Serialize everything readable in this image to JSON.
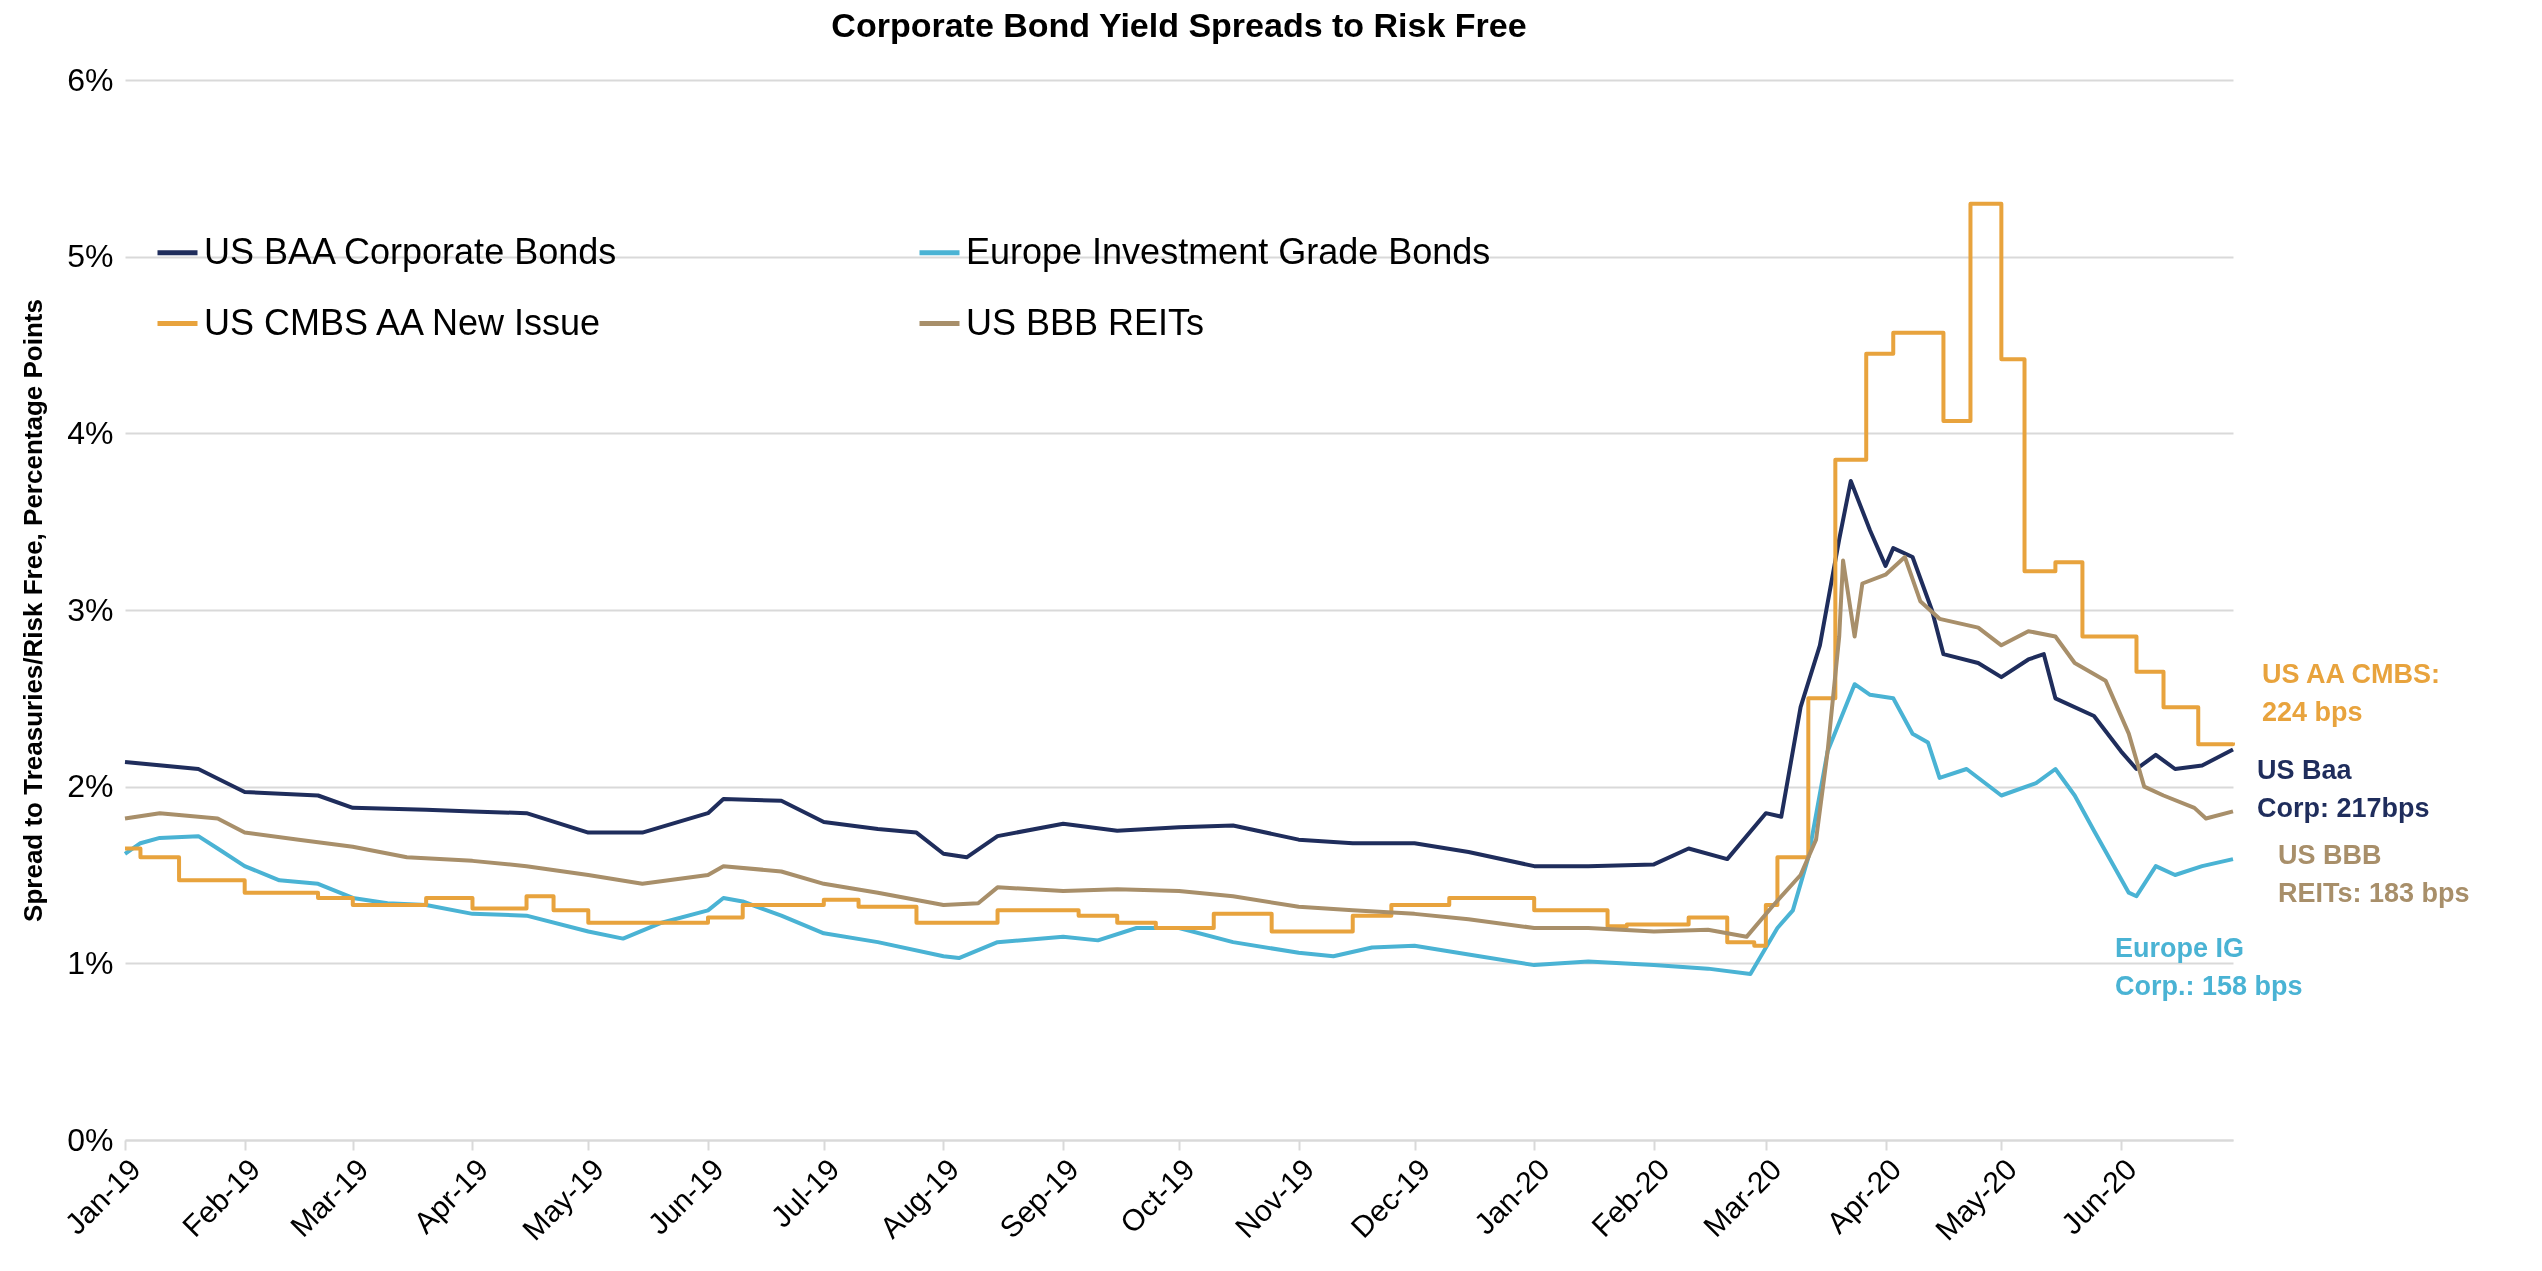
{
  "chart_data": {
    "type": "line",
    "title": "Corporate Bond Yield Spreads to Risk Free",
    "ylabel": "Spread to Treasuries/Risk Free, Percentage Points",
    "xlim": [
      "2019-01-01",
      "2020-06-30"
    ],
    "xticks": [
      {
        "value": "2019-01-01",
        "label": "Jan-19"
      },
      {
        "value": "2019-02-01",
        "label": "Feb-19"
      },
      {
        "value": "2019-03-01",
        "label": "Mar-19"
      },
      {
        "value": "2019-04-01",
        "label": "Apr-19"
      },
      {
        "value": "2019-05-01",
        "label": "May-19"
      },
      {
        "value": "2019-06-01",
        "label": "Jun-19"
      },
      {
        "value": "2019-07-01",
        "label": "Jul-19"
      },
      {
        "value": "2019-08-01",
        "label": "Aug-19"
      },
      {
        "value": "2019-09-01",
        "label": "Sep-19"
      },
      {
        "value": "2019-10-01",
        "label": "Oct-19"
      },
      {
        "value": "2019-11-01",
        "label": "Nov-19"
      },
      {
        "value": "2019-12-01",
        "label": "Dec-19"
      },
      {
        "value": "2020-01-01",
        "label": "Jan-20"
      },
      {
        "value": "2020-02-01",
        "label": "Feb-20"
      },
      {
        "value": "2020-03-01",
        "label": "Mar-20"
      },
      {
        "value": "2020-04-01",
        "label": "Apr-20"
      },
      {
        "value": "2020-05-01",
        "label": "May-20"
      },
      {
        "value": "2020-06-01",
        "label": "Jun-20"
      }
    ],
    "ylim": [
      0,
      6
    ],
    "yticks": [
      {
        "value": 0,
        "label": "0%"
      },
      {
        "value": 1,
        "label": "1%"
      },
      {
        "value": 2,
        "label": "2%"
      },
      {
        "value": 3,
        "label": "3%"
      },
      {
        "value": 4,
        "label": "4%"
      },
      {
        "value": 5,
        "label": "5%"
      },
      {
        "value": 6,
        "label": "6%"
      }
    ],
    "grid": "y",
    "legend": "top left",
    "series": [
      {
        "name": "US BAA Corporate Bonds",
        "color": "#1f2d5c",
        "x": [
          "2019-01-01",
          "2019-01-20",
          "2019-02-01",
          "2019-02-20",
          "2019-03-01",
          "2019-03-20",
          "2019-04-01",
          "2019-04-15",
          "2019-05-01",
          "2019-05-15",
          "2019-06-01",
          "2019-06-05",
          "2019-06-20",
          "2019-07-01",
          "2019-07-15",
          "2019-07-25",
          "2019-08-01",
          "2019-08-07",
          "2019-08-15",
          "2019-09-01",
          "2019-09-15",
          "2019-10-01",
          "2019-10-15",
          "2019-11-01",
          "2019-11-15",
          "2019-12-01",
          "2019-12-15",
          "2020-01-01",
          "2020-01-15",
          "2020-02-01",
          "2020-02-10",
          "2020-02-20",
          "2020-03-01",
          "2020-03-05",
          "2020-03-10",
          "2020-03-15",
          "2020-03-20",
          "2020-03-23",
          "2020-03-28",
          "2020-04-01",
          "2020-04-03",
          "2020-04-08",
          "2020-04-13",
          "2020-04-16",
          "2020-04-25",
          "2020-05-01",
          "2020-05-08",
          "2020-05-12",
          "2020-05-15",
          "2020-05-25",
          "2020-06-01",
          "2020-06-05",
          "2020-06-10",
          "2020-06-15",
          "2020-06-22",
          "2020-06-30"
        ],
        "values": [
          2.14,
          2.1,
          1.97,
          1.95,
          1.88,
          1.87,
          1.86,
          1.85,
          1.74,
          1.74,
          1.85,
          1.93,
          1.92,
          1.8,
          1.76,
          1.74,
          1.62,
          1.6,
          1.72,
          1.79,
          1.75,
          1.77,
          1.78,
          1.7,
          1.68,
          1.68,
          1.63,
          1.55,
          1.55,
          1.56,
          1.65,
          1.59,
          1.85,
          1.83,
          2.45,
          2.8,
          3.4,
          3.73,
          3.45,
          3.25,
          3.35,
          3.3,
          3.0,
          2.75,
          2.7,
          2.62,
          2.72,
          2.75,
          2.5,
          2.4,
          2.2,
          2.1,
          2.18,
          2.1,
          2.12,
          2.21
        ]
      },
      {
        "name": "Europe Investment Grade Bonds",
        "color": "#4ab3d4",
        "x": [
          "2019-01-01",
          "2019-01-05",
          "2019-01-10",
          "2019-01-20",
          "2019-01-25",
          "2019-02-01",
          "2019-02-10",
          "2019-02-20",
          "2019-03-01",
          "2019-03-10",
          "2019-03-20",
          "2019-04-01",
          "2019-04-15",
          "2019-05-01",
          "2019-05-10",
          "2019-05-20",
          "2019-06-01",
          "2019-06-05",
          "2019-06-10",
          "2019-06-20",
          "2019-07-01",
          "2019-07-15",
          "2019-08-01",
          "2019-08-05",
          "2019-08-15",
          "2019-09-01",
          "2019-09-10",
          "2019-09-20",
          "2019-10-01",
          "2019-10-15",
          "2019-11-01",
          "2019-11-10",
          "2019-11-20",
          "2019-12-01",
          "2019-12-15",
          "2020-01-01",
          "2020-01-15",
          "2020-02-01",
          "2020-02-15",
          "2020-02-26",
          "2020-03-04",
          "2020-03-08",
          "2020-03-12",
          "2020-03-17",
          "2020-03-24",
          "2020-03-28",
          "2020-04-03",
          "2020-04-08",
          "2020-04-12",
          "2020-04-15",
          "2020-04-22",
          "2020-05-01",
          "2020-05-10",
          "2020-05-15",
          "2020-05-20",
          "2020-05-25",
          "2020-06-03",
          "2020-06-05",
          "2020-06-10",
          "2020-06-15",
          "2020-06-22",
          "2020-06-30"
        ],
        "values": [
          1.62,
          1.68,
          1.71,
          1.72,
          1.65,
          1.55,
          1.47,
          1.45,
          1.37,
          1.34,
          1.33,
          1.28,
          1.27,
          1.18,
          1.14,
          1.23,
          1.3,
          1.37,
          1.35,
          1.27,
          1.17,
          1.12,
          1.04,
          1.03,
          1.12,
          1.15,
          1.13,
          1.2,
          1.2,
          1.12,
          1.06,
          1.04,
          1.09,
          1.1,
          1.05,
          0.99,
          1.01,
          0.99,
          0.97,
          0.94,
          1.2,
          1.3,
          1.6,
          2.2,
          2.58,
          2.52,
          2.5,
          2.3,
          2.25,
          2.05,
          2.1,
          1.95,
          2.02,
          2.1,
          1.95,
          1.75,
          1.4,
          1.38,
          1.55,
          1.5,
          1.55,
          1.59
        ]
      },
      {
        "name": "US CMBS AA New Issue",
        "type": "step",
        "color": "#e8a33d",
        "x": [
          "2019-01-01",
          "2019-01-05",
          "2019-01-15",
          "2019-02-01",
          "2019-02-20",
          "2019-03-01",
          "2019-03-20",
          "2019-04-01",
          "2019-04-15",
          "2019-04-22",
          "2019-05-01",
          "2019-06-01",
          "2019-06-10",
          "2019-07-01",
          "2019-07-10",
          "2019-07-25",
          "2019-08-15",
          "2019-09-05",
          "2019-09-15",
          "2019-09-25",
          "2019-10-10",
          "2019-10-25",
          "2019-11-15",
          "2019-11-25",
          "2019-12-10",
          "2020-01-01",
          "2020-01-20",
          "2020-01-25",
          "2020-02-10",
          "2020-02-20",
          "2020-02-27",
          "2020-03-01",
          "2020-03-04",
          "2020-03-12",
          "2020-03-19",
          "2020-03-27",
          "2020-04-03",
          "2020-04-16",
          "2020-04-23",
          "2020-05-01",
          "2020-05-07",
          "2020-05-15",
          "2020-05-22",
          "2020-06-05",
          "2020-06-12",
          "2020-06-21",
          "2020-06-30"
        ],
        "values": [
          1.65,
          1.6,
          1.47,
          1.4,
          1.37,
          1.33,
          1.37,
          1.31,
          1.38,
          1.3,
          1.23,
          1.26,
          1.33,
          1.36,
          1.32,
          1.23,
          1.3,
          1.27,
          1.23,
          1.2,
          1.28,
          1.18,
          1.27,
          1.33,
          1.37,
          1.3,
          1.21,
          1.22,
          1.26,
          1.12,
          1.1,
          1.33,
          1.6,
          2.5,
          3.85,
          4.45,
          4.57,
          4.07,
          5.3,
          4.42,
          3.22,
          3.27,
          2.85,
          2.65,
          2.45,
          2.24,
          2.25
        ]
      },
      {
        "name": "US BBB REITs",
        "color": "#a88f6a",
        "x": [
          "2019-01-01",
          "2019-01-10",
          "2019-01-25",
          "2019-02-01",
          "2019-02-15",
          "2019-03-01",
          "2019-03-15",
          "2019-04-01",
          "2019-04-15",
          "2019-05-01",
          "2019-05-15",
          "2019-06-01",
          "2019-06-05",
          "2019-06-20",
          "2019-07-01",
          "2019-07-15",
          "2019-08-01",
          "2019-08-10",
          "2019-08-15",
          "2019-09-01",
          "2019-09-15",
          "2019-10-01",
          "2019-10-15",
          "2019-11-01",
          "2019-11-15",
          "2019-12-01",
          "2019-12-15",
          "2020-01-01",
          "2020-01-15",
          "2020-02-01",
          "2020-02-15",
          "2020-02-25",
          "2020-03-03",
          "2020-03-10",
          "2020-03-14",
          "2020-03-17",
          "2020-03-20",
          "2020-03-21",
          "2020-03-24",
          "2020-03-26",
          "2020-04-01",
          "2020-04-06",
          "2020-04-10",
          "2020-04-15",
          "2020-04-25",
          "2020-05-01",
          "2020-05-08",
          "2020-05-15",
          "2020-05-20",
          "2020-05-28",
          "2020-06-03",
          "2020-06-07",
          "2020-06-12",
          "2020-06-20",
          "2020-06-23",
          "2020-06-30"
        ],
        "values": [
          1.82,
          1.85,
          1.82,
          1.74,
          1.7,
          1.66,
          1.6,
          1.58,
          1.55,
          1.5,
          1.45,
          1.5,
          1.55,
          1.52,
          1.45,
          1.4,
          1.33,
          1.34,
          1.43,
          1.41,
          1.42,
          1.41,
          1.38,
          1.32,
          1.3,
          1.28,
          1.25,
          1.2,
          1.2,
          1.18,
          1.19,
          1.15,
          1.33,
          1.5,
          1.7,
          2.2,
          2.85,
          3.28,
          2.85,
          3.15,
          3.2,
          3.3,
          3.05,
          2.95,
          2.9,
          2.8,
          2.88,
          2.85,
          2.7,
          2.6,
          2.3,
          2.0,
          1.95,
          1.88,
          1.82,
          1.86
        ]
      }
    ],
    "annotations": [
      {
        "text": "US Baa\nCorp: 217bps",
        "x": "2020-06-30",
        "y": 2.17
      },
      {
        "text": "Europe IG\nCorp.: 158 bps",
        "x": "2020-06-30",
        "y": 1.58
      },
      {
        "text": "US AA CMBS:\n224 bps",
        "x": "2020-06-30",
        "y": 2.24
      },
      {
        "text": "US BBB\nREITs: 183 bps",
        "x": "2020-06-30",
        "y": 1.83
      }
    ]
  }
}
